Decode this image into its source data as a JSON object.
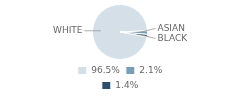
{
  "chart_data": {
    "type": "pie",
    "categories": [
      "96.5%",
      "2.1%",
      "1.4%"
    ],
    "values": [
      96.5,
      2.1,
      1.4
    ],
    "colors": [
      "#d4dfe8",
      "#7a9eb5",
      "#2e4f6b"
    ],
    "annotations": [
      "WHITE",
      "ASIAN",
      "BLACK"
    ],
    "legend": "bottom"
  }
}
